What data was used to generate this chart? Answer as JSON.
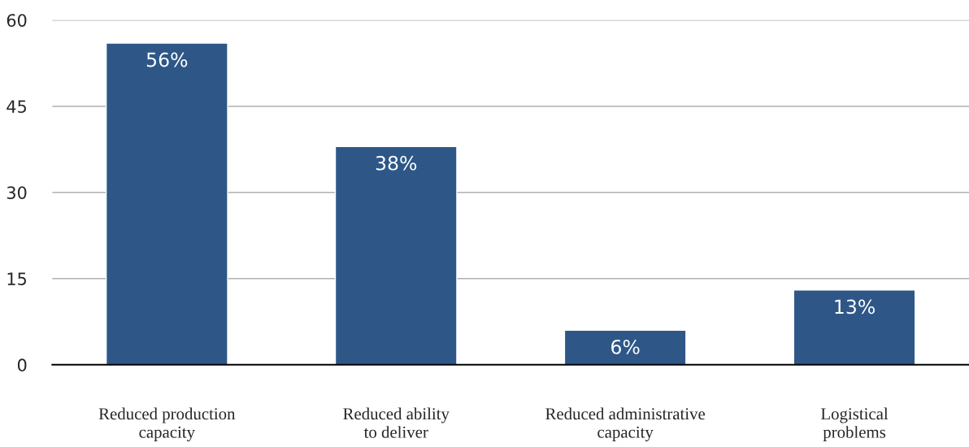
{
  "chart_data": {
    "type": "bar",
    "categories": [
      "Reduced production\ncapacity",
      "Reduced ability\nto deliver",
      "Reduced administrative\ncapacity",
      "Logistical\nproblems"
    ],
    "values": [
      56,
      38,
      6,
      13
    ],
    "value_labels": [
      "56%",
      "38%",
      "6%",
      "13%"
    ],
    "color": "#2e5788",
    "ylim": [
      0,
      60
    ],
    "yticks": [
      0,
      15,
      30,
      45,
      60
    ],
    "grid": "y",
    "legend": false
  }
}
